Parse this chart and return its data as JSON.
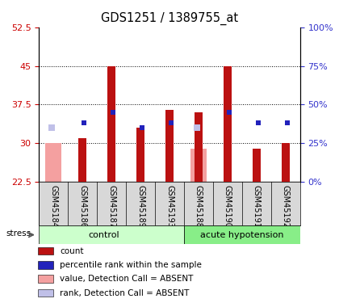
{
  "title": "GDS1251 / 1389755_at",
  "samples": [
    "GSM45184",
    "GSM45186",
    "GSM45187",
    "GSM45189",
    "GSM45193",
    "GSM45188",
    "GSM45190",
    "GSM45191",
    "GSM45192"
  ],
  "red_values": [
    null,
    31.0,
    45.0,
    33.0,
    36.5,
    36.0,
    45.0,
    29.0,
    30.0
  ],
  "pink_values": [
    30.0,
    null,
    null,
    null,
    null,
    29.0,
    null,
    null,
    null
  ],
  "blue_values": [
    null,
    34.0,
    36.0,
    33.0,
    34.0,
    null,
    36.0,
    34.0,
    34.0
  ],
  "light_blue_values": [
    33.0,
    null,
    null,
    null,
    null,
    33.0,
    null,
    null,
    null
  ],
  "ylim_left": [
    22.5,
    52.5
  ],
  "ylim_right": [
    0,
    100
  ],
  "yticks_left": [
    22.5,
    30.0,
    37.5,
    45.0,
    52.5
  ],
  "yticks_left_labels": [
    "22.5",
    "30",
    "37.5",
    "45",
    "52.5"
  ],
  "yticks_right": [
    0,
    25,
    50,
    75,
    100
  ],
  "yticks_right_labels": [
    "0%",
    "25%",
    "50%",
    "75%",
    "100%"
  ],
  "left_axis_color": "#cc0000",
  "right_axis_color": "#3333cc",
  "red_color": "#bb1111",
  "pink_color": "#f4a0a0",
  "blue_color": "#2222bb",
  "light_blue_color": "#c0c0e8",
  "control_count": 5,
  "legend_items": [
    {
      "label": "count",
      "color": "#bb1111"
    },
    {
      "label": "percentile rank within the sample",
      "color": "#2222bb"
    },
    {
      "label": "value, Detection Call = ABSENT",
      "color": "#f4a0a0"
    },
    {
      "label": "rank, Detection Call = ABSENT",
      "color": "#c0c0e8"
    }
  ],
  "baseline": 22.5
}
